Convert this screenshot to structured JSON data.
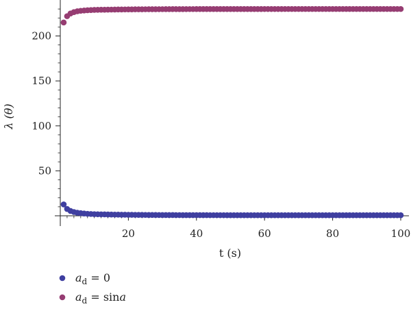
{
  "chart_data": {
    "type": "scatter",
    "xlabel": "t (s)",
    "ylabel": "λ (θ)",
    "xlim": [
      0,
      100
    ],
    "ylim": [
      0,
      240
    ],
    "x_ticks": [
      20,
      40,
      60,
      80,
      100
    ],
    "y_ticks": [
      50,
      100,
      150,
      200
    ],
    "x_tick_labels": [
      "20",
      "40",
      "60",
      "80",
      "100"
    ],
    "y_tick_labels": [
      "50",
      "100",
      "150",
      "200"
    ],
    "grid": false,
    "legend_position": "bottom-left",
    "x": {
      "start": 1,
      "end": 100,
      "step": 1
    },
    "series": [
      {
        "legend_label": {
          "var": "a",
          "sub": "d",
          "rest": " = 0"
        },
        "color": "#3f3fa0",
        "model": "decay",
        "first_values": [
          12.6,
          7.6,
          5.4,
          4.2,
          3.4,
          2.9,
          2.5,
          2.2,
          2.0,
          1.8
        ],
        "asymptote": 0.6
      },
      {
        "legend_label": {
          "var": "a",
          "sub": "d",
          "rest": " = sin",
          "tail_var": "a"
        },
        "color": "#963d72",
        "model": "rise",
        "first_values": [
          215,
          222,
          225,
          226.5,
          227.5,
          228,
          228.3,
          228.6,
          228.8,
          229
        ],
        "asymptote": 230
      }
    ]
  }
}
